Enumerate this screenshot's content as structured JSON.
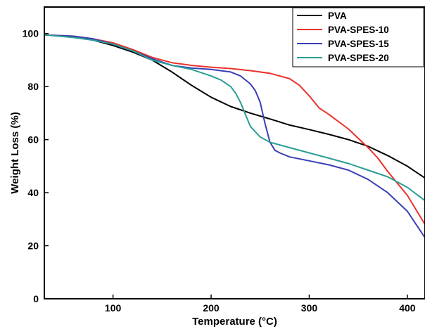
{
  "chart_data": {
    "type": "line",
    "title": "",
    "xlabel": "Temperature (°C)",
    "ylabel": "Weight Loss (%)",
    "xlim": [
      30,
      418
    ],
    "ylim": [
      0,
      110
    ],
    "xticks": [
      100,
      200,
      300,
      400
    ],
    "yticks": [
      0,
      20,
      40,
      60,
      80,
      100
    ],
    "grid": false,
    "legend_position": "top-right",
    "series": [
      {
        "name": "PVA",
        "color": "#000000",
        "x": [
          30,
          60,
          80,
          100,
          120,
          140,
          160,
          180,
          200,
          220,
          240,
          260,
          280,
          300,
          320,
          340,
          360,
          380,
          400,
          418
        ],
        "y": [
          99.5,
          98.8,
          97.5,
          95.5,
          93.0,
          90.0,
          85.5,
          80.5,
          76.0,
          72.5,
          70.0,
          67.8,
          65.5,
          63.8,
          62.0,
          60.0,
          57.5,
          54.0,
          50.0,
          45.5
        ]
      },
      {
        "name": "PVA-SPES-10",
        "color": "#e8322b",
        "x": [
          30,
          60,
          80,
          100,
          120,
          140,
          160,
          180,
          200,
          220,
          240,
          260,
          280,
          290,
          300,
          310,
          320,
          340,
          360,
          370,
          380,
          400,
          418
        ],
        "y": [
          99.5,
          99.0,
          98.0,
          96.5,
          94.0,
          91.0,
          89.0,
          88.0,
          87.3,
          86.8,
          86.0,
          85.0,
          83.0,
          80.5,
          76.5,
          72.0,
          69.5,
          64.0,
          57.0,
          53.0,
          48.0,
          39.0,
          28.0
        ]
      },
      {
        "name": "PVA-SPES-15",
        "color": "#3a3fb5",
        "x": [
          30,
          60,
          80,
          100,
          120,
          140,
          160,
          180,
          200,
          220,
          230,
          240,
          245,
          250,
          255,
          260,
          265,
          270,
          280,
          300,
          320,
          340,
          360,
          380,
          400,
          418
        ],
        "y": [
          99.5,
          99.0,
          98.0,
          96.0,
          93.5,
          90.5,
          88.0,
          87.0,
          86.5,
          85.5,
          84.0,
          81.0,
          78.5,
          74.0,
          66.0,
          59.0,
          56.0,
          55.0,
          53.5,
          52.0,
          50.5,
          48.5,
          45.0,
          40.0,
          33.0,
          23.0
        ]
      },
      {
        "name": "PVA-SPES-20",
        "color": "#2a9d96",
        "x": [
          30,
          60,
          80,
          100,
          120,
          140,
          160,
          180,
          200,
          210,
          220,
          225,
          230,
          235,
          240,
          250,
          260,
          280,
          300,
          320,
          340,
          360,
          380,
          400,
          418
        ],
        "y": [
          99.5,
          98.5,
          97.5,
          96.0,
          93.5,
          90.0,
          88.0,
          86.5,
          84.0,
          82.5,
          80.0,
          77.5,
          74.0,
          69.5,
          65.0,
          61.0,
          59.0,
          57.0,
          55.0,
          53.0,
          51.0,
          48.5,
          46.0,
          42.0,
          37.0
        ]
      }
    ]
  }
}
